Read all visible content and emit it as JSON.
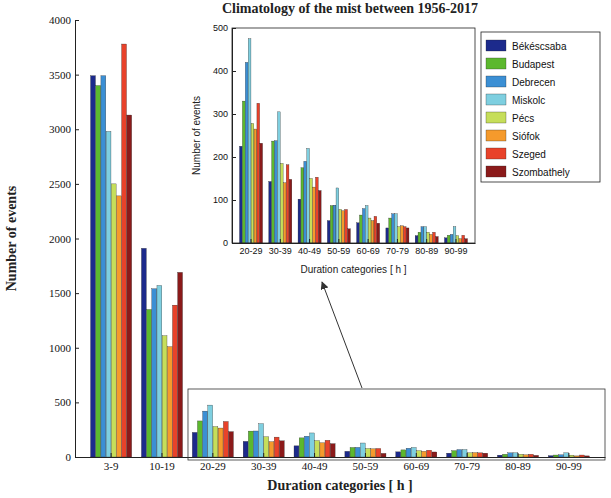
{
  "chart_data": [
    {
      "type": "bar",
      "title": "Climatology of the mist between 1956-2017",
      "x_label": "Duration categories [ h ]",
      "y_label": "Number of events",
      "categories": [
        "3-9",
        "10-19",
        "20-29",
        "30-39",
        "40-49",
        "50-59",
        "60-69",
        "70-79",
        "80-89",
        "90-99"
      ],
      "series": [
        {
          "color": "#1c2a8c",
          "values": [
            3490,
            1910,
            225,
            143,
            102,
            52,
            47,
            35,
            17,
            12
          ]
        },
        {
          "color": "#5cb82e",
          "values": [
            3400,
            1350,
            330,
            237,
            175,
            87,
            65,
            58,
            25,
            18
          ]
        },
        {
          "color": "#3b8fd4",
          "values": [
            3490,
            1540,
            420,
            238,
            190,
            88,
            80,
            68,
            38,
            20
          ]
        },
        {
          "color": "#7ecfe0",
          "values": [
            2980,
            1570,
            475,
            305,
            220,
            128,
            87,
            68,
            38,
            38
          ]
        },
        {
          "color": "#c6de5a",
          "values": [
            2500,
            1110,
            278,
            185,
            150,
            78,
            58,
            38,
            25,
            17
          ]
        },
        {
          "color": "#f59a2c",
          "values": [
            2390,
            1010,
            265,
            140,
            130,
            75,
            52,
            40,
            20,
            10
          ]
        },
        {
          "color": "#e8422a",
          "values": [
            3780,
            1390,
            325,
            182,
            153,
            78,
            62,
            38,
            25,
            18
          ]
        },
        {
          "color": "#8b1a1a",
          "values": [
            3130,
            1690,
            232,
            148,
            122,
            33,
            46,
            35,
            15,
            10
          ]
        }
      ],
      "ylim": [
        0,
        4000
      ],
      "yticks": [
        0,
        500,
        1000,
        1500,
        2000,
        2500,
        3000,
        3500,
        4000
      ]
    },
    {
      "type": "bar",
      "x_label": "Duration categories [ h ]",
      "y_label": "Number of events",
      "categories": [
        "20-29",
        "30-39",
        "40-49",
        "50-59",
        "60-69",
        "70-79",
        "80-89",
        "90-99"
      ],
      "series": [
        {
          "name": "Békéscsaba",
          "color": "#1c2a8c",
          "values": [
            225,
            143,
            102,
            52,
            47,
            35,
            17,
            12
          ]
        },
        {
          "name": "Budapest",
          "color": "#5cb82e",
          "values": [
            330,
            237,
            175,
            87,
            65,
            58,
            25,
            18
          ]
        },
        {
          "name": "Debrecen",
          "color": "#3b8fd4",
          "values": [
            420,
            238,
            190,
            88,
            80,
            68,
            38,
            20
          ]
        },
        {
          "name": "Miskolc",
          "color": "#7ecfe0",
          "values": [
            475,
            305,
            220,
            128,
            87,
            68,
            38,
            38
          ]
        },
        {
          "name": "Pécs",
          "color": "#c6de5a",
          "values": [
            278,
            185,
            150,
            78,
            58,
            38,
            25,
            17
          ]
        },
        {
          "name": "Siófok",
          "color": "#f59a2c",
          "values": [
            265,
            140,
            130,
            75,
            52,
            40,
            20,
            10
          ]
        },
        {
          "name": "Szeged",
          "color": "#e8422a",
          "values": [
            325,
            182,
            153,
            78,
            62,
            38,
            25,
            18
          ]
        },
        {
          "name": "Szombathely",
          "color": "#8b1a1a",
          "values": [
            232,
            148,
            122,
            33,
            46,
            35,
            15,
            10
          ]
        }
      ],
      "ylim": [
        0,
        500
      ],
      "yticks": [
        0,
        100,
        200,
        300,
        400,
        500
      ],
      "legend": "upper right"
    }
  ]
}
